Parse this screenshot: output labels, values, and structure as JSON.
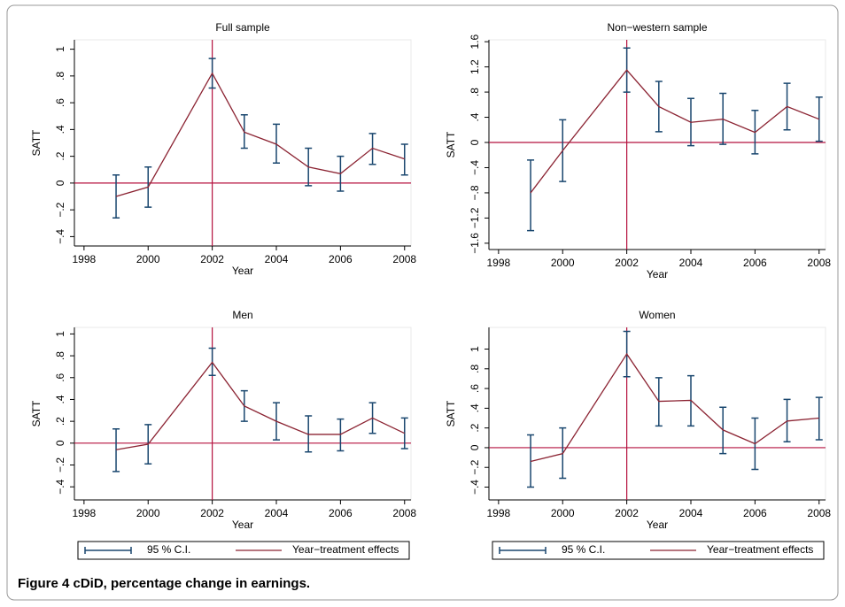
{
  "caption": "Figure 4 cDiD, percentage change in earnings.",
  "chart_data": [
    {
      "type": "errorbar-line",
      "title": "Full sample",
      "xlabel": "Year",
      "ylabel": "SATT",
      "x": [
        1999,
        2000,
        2002,
        2003,
        2004,
        2005,
        2006,
        2007,
        2008
      ],
      "xlim": [
        1997.7,
        2008.2
      ],
      "xticks": [
        1998,
        2000,
        2002,
        2004,
        2006,
        2008
      ],
      "ylim": [
        -0.47,
        1.07
      ],
      "yticks": [
        {
          "value": -0.4,
          "label": "−.4"
        },
        {
          "value": -0.2,
          "label": "−.2"
        },
        0,
        {
          "value": 0.2,
          "label": ".2"
        },
        {
          "value": 0.4,
          "label": ".4"
        },
        {
          "value": 0.6,
          "label": ".6"
        },
        {
          "value": 0.8,
          "label": ".8"
        },
        1
      ],
      "vline": 2002,
      "hline": 0,
      "ref_color": "#b5123f",
      "legend": false,
      "series": [
        {
          "name": "Year−treatment effects",
          "color": "#8b2332",
          "values": [
            -0.1,
            -0.03,
            0.82,
            0.38,
            0.29,
            0.12,
            0.07,
            0.26,
            0.18
          ]
        }
      ],
      "ci": {
        "name": "95 % C.I.",
        "color": "#1a476f",
        "low": [
          -0.26,
          -0.18,
          0.71,
          0.26,
          0.15,
          -0.02,
          -0.06,
          0.14,
          0.06
        ],
        "high": [
          0.06,
          0.12,
          0.93,
          0.51,
          0.44,
          0.26,
          0.2,
          0.37,
          0.29
        ]
      }
    },
    {
      "type": "errorbar-line",
      "title": "Non−western sample",
      "xlabel": "Year",
      "ylabel": "SATT",
      "x": [
        1999,
        2000,
        2002,
        2003,
        2004,
        2005,
        2006,
        2007,
        2008
      ],
      "xlim": [
        1997.7,
        2008.2
      ],
      "xticks": [
        1998,
        2000,
        2002,
        2004,
        2006,
        2008
      ],
      "ylim": [
        -1.7,
        1.63
      ],
      "yticks": [
        {
          "value": -1.6,
          "label": "−1.6"
        },
        {
          "value": -1.2,
          "label": "−1.2"
        },
        {
          "value": -0.8,
          "label": "−.8"
        },
        {
          "value": -0.4,
          "label": "−.4"
        },
        0,
        {
          "value": 0.4,
          "label": ".4"
        },
        {
          "value": 0.8,
          "label": ".8"
        },
        1.2,
        1.6
      ],
      "vline": 2002,
      "hline": 0,
      "ref_color": "#b5123f",
      "legend": false,
      "series": [
        {
          "name": "Year−treatment effects",
          "color": "#8b2332",
          "values": [
            -0.8,
            -0.13,
            1.15,
            0.57,
            0.32,
            0.37,
            0.16,
            0.57,
            0.37
          ]
        }
      ],
      "ci": {
        "name": "95 % C.I.",
        "color": "#1a476f",
        "low": [
          -1.4,
          -0.62,
          0.8,
          0.17,
          -0.05,
          -0.03,
          -0.18,
          0.2,
          0.02
        ],
        "high": [
          -0.28,
          0.36,
          1.5,
          0.97,
          0.7,
          0.78,
          0.51,
          0.94,
          0.72
        ]
      }
    },
    {
      "type": "errorbar-line",
      "title": "Men",
      "xlabel": "Year",
      "ylabel": "SATT",
      "x": [
        1999,
        2000,
        2002,
        2003,
        2004,
        2005,
        2006,
        2007,
        2008
      ],
      "xlim": [
        1997.7,
        2008.2
      ],
      "xticks": [
        1998,
        2000,
        2002,
        2004,
        2006,
        2008
      ],
      "ylim": [
        -0.52,
        1.06
      ],
      "yticks": [
        {
          "value": -0.4,
          "label": "−.4"
        },
        {
          "value": -0.2,
          "label": "−.2"
        },
        0,
        {
          "value": 0.2,
          "label": ".2"
        },
        {
          "value": 0.4,
          "label": ".4"
        },
        {
          "value": 0.6,
          "label": ".6"
        },
        {
          "value": 0.8,
          "label": ".8"
        },
        1
      ],
      "vline": 2002,
      "hline": 0,
      "ref_color": "#b5123f",
      "legend": true,
      "series": [
        {
          "name": "Year−treatment effects",
          "color": "#8b2332",
          "values": [
            -0.06,
            -0.01,
            0.74,
            0.34,
            0.2,
            0.08,
            0.08,
            0.23,
            0.09
          ]
        }
      ],
      "ci": {
        "name": "95 % C.I.",
        "color": "#1a476f",
        "low": [
          -0.26,
          -0.19,
          0.62,
          0.2,
          0.03,
          -0.08,
          -0.07,
          0.09,
          -0.05
        ],
        "high": [
          0.13,
          0.17,
          0.87,
          0.48,
          0.37,
          0.25,
          0.22,
          0.37,
          0.23
        ]
      }
    },
    {
      "type": "errorbar-line",
      "title": "Women",
      "xlabel": "Year",
      "ylabel": "SATT",
      "x": [
        1999,
        2000,
        2002,
        2003,
        2004,
        2005,
        2006,
        2007,
        2008
      ],
      "xlim": [
        1997.7,
        2008.2
      ],
      "xticks": [
        1998,
        2000,
        2002,
        2004,
        2006,
        2008
      ],
      "ylim": [
        -0.53,
        1.22
      ],
      "yticks": [
        {
          "value": -0.4,
          "label": "−.4"
        },
        {
          "value": -0.2,
          "label": "−.2"
        },
        0,
        {
          "value": 0.2,
          "label": ".2"
        },
        {
          "value": 0.4,
          "label": ".4"
        },
        {
          "value": 0.6,
          "label": ".6"
        },
        {
          "value": 0.8,
          "label": ".8"
        },
        1
      ],
      "vline": 2002,
      "hline": 0,
      "ref_color": "#b5123f",
      "legend": true,
      "series": [
        {
          "name": "Year−treatment effects",
          "color": "#8b2332",
          "values": [
            -0.14,
            -0.06,
            0.95,
            0.47,
            0.48,
            0.18,
            0.04,
            0.27,
            0.3
          ]
        }
      ],
      "ci": {
        "name": "95 % C.I.",
        "color": "#1a476f",
        "low": [
          -0.4,
          -0.31,
          0.72,
          0.22,
          0.22,
          -0.06,
          -0.22,
          0.06,
          0.08
        ],
        "high": [
          0.13,
          0.2,
          1.18,
          0.71,
          0.73,
          0.41,
          0.3,
          0.49,
          0.51
        ]
      }
    }
  ]
}
